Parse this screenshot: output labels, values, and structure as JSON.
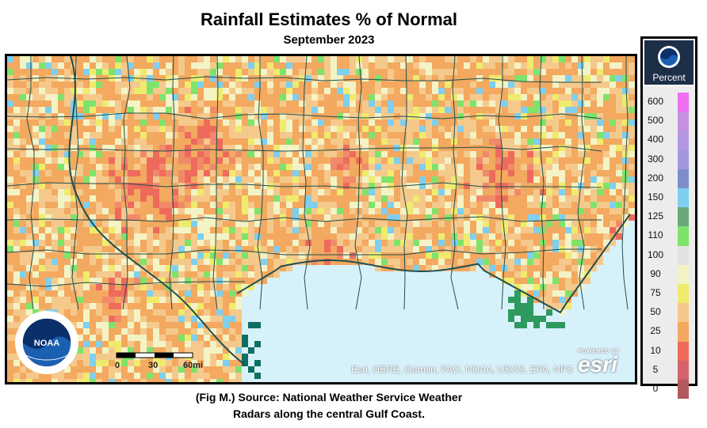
{
  "title": "Rainfall Estimates % of Normal",
  "subtitle": "September 2023",
  "caption": {
    "line1": "(Fig M.) Source: National Weather Service Weather",
    "line2": "Radars along the central Gulf Coast."
  },
  "map": {
    "attribution": "Esri, HERE, Garmin, FAO, NOAA, USGS, EPA, NPS",
    "powered_by": "POWERED BY",
    "esri_logo": "esri",
    "logo_icon": "noaa-logo-icon",
    "scale_labels": [
      "0",
      "30",
      "60mi"
    ],
    "colors": {
      "water": "#d7f1fb",
      "border": "#1f4e4f",
      "coast_marsh": "#0f6e63",
      "base": "#f3b266"
    }
  },
  "legend": {
    "title": "Percent",
    "icon": "noaa-logo-icon",
    "items": [
      {
        "value": "600",
        "color": "#f06ef3"
      },
      {
        "value": "500",
        "color": "#c890e0"
      },
      {
        "value": "400",
        "color": "#b497e3"
      },
      {
        "value": "300",
        "color": "#a497e0"
      },
      {
        "value": "200",
        "color": "#7d8ecb"
      },
      {
        "value": "150",
        "color": "#7fcfee"
      },
      {
        "value": "125",
        "color": "#6aa97a"
      },
      {
        "value": "110",
        "color": "#7fe36b"
      },
      {
        "value": "100",
        "color": "#e2e2e2"
      },
      {
        "value": "90",
        "color": "#f4f3c5"
      },
      {
        "value": "75",
        "color": "#efeb6d"
      },
      {
        "value": "50",
        "color": "#f5c98c"
      },
      {
        "value": "25",
        "color": "#f3a95f"
      },
      {
        "value": "10",
        "color": "#ee6b5c"
      },
      {
        "value": "5",
        "color": "#d4636d"
      },
      {
        "value": "0",
        "color": "#b4585f"
      }
    ]
  }
}
